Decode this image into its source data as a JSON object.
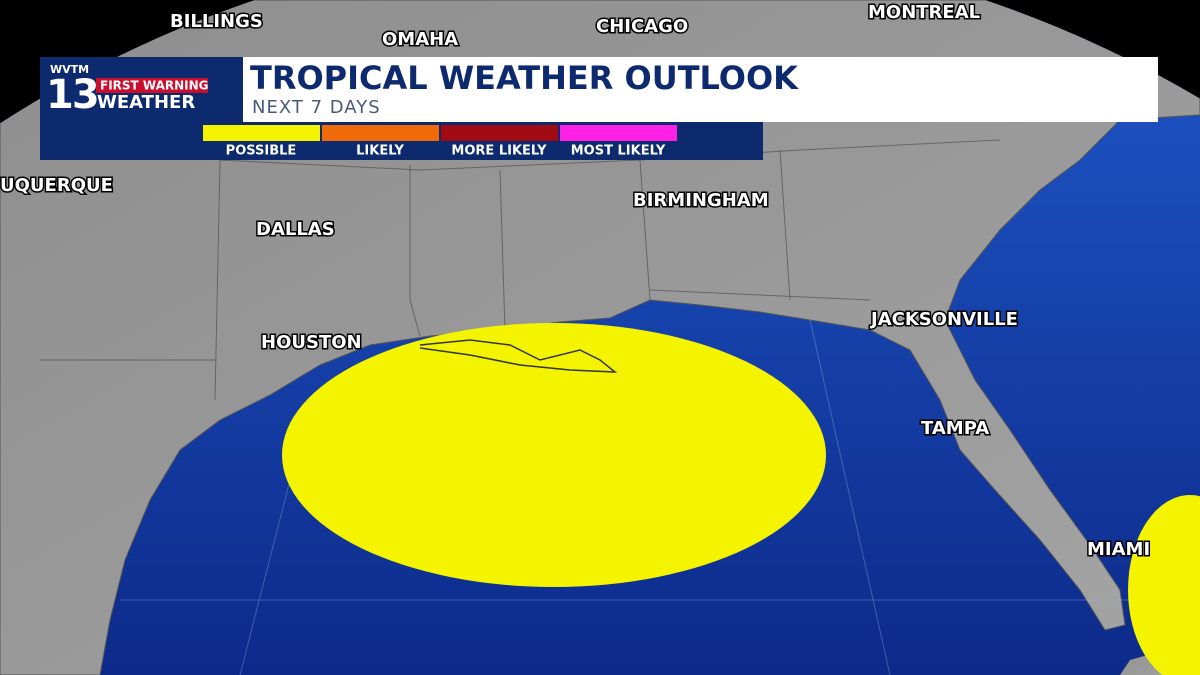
{
  "logo": {
    "station": "WVTM",
    "number": "13",
    "badge": "FIRST WARNING",
    "name": "WEATHER"
  },
  "header": {
    "title": "TROPICAL WEATHER OUTLOOK",
    "subtitle": "NEXT 7 DAYS"
  },
  "legend": [
    {
      "label": "POSSIBLE",
      "color": "#f4f400"
    },
    {
      "label": "LIKELY",
      "color": "#f06a0a"
    },
    {
      "label": "MORE LIKELY",
      "color": "#a20a14"
    },
    {
      "label": "MOST LIKELY",
      "color": "#ff22e6"
    }
  ],
  "cities": [
    "BILLINGS",
    "OMAHA",
    "CHICAGO",
    "MONTREAL",
    "UQUERQUE",
    "DALLAS",
    "BIRMINGHAM",
    "HOUSTON",
    "JACKSONVILLE",
    "TAMPA",
    "MIAMI"
  ]
}
